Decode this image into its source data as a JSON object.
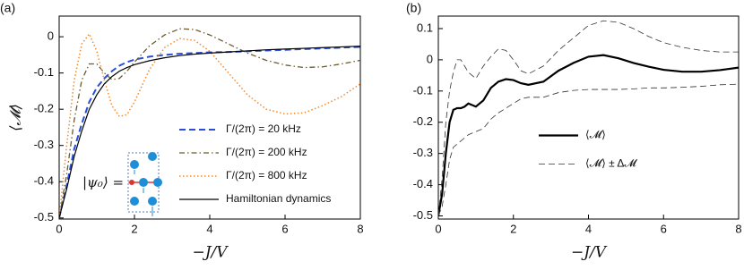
{
  "chart_data": [
    {
      "type": "line",
      "panel_label": "(a)",
      "xlabel": "−J/V",
      "ylabel": "⟨𝓜⟩",
      "annotation": "|ψ₀⟩ =",
      "xlim": [
        0,
        8
      ],
      "ylim": [
        -0.503,
        0.057
      ],
      "xticks": [
        0,
        2,
        4,
        6,
        8
      ],
      "yticks": [
        -0.5,
        -0.4,
        -0.3,
        -0.2,
        -0.1,
        0
      ],
      "legend": "lower right",
      "x": [
        0,
        0.2,
        0.4,
        0.6,
        0.8,
        1.0,
        1.2,
        1.4,
        1.6,
        1.8,
        2.0,
        2.4,
        2.8,
        3.2,
        3.6,
        4.0,
        4.5,
        5,
        5.5,
        6,
        6.5,
        7,
        7.5,
        8
      ],
      "series": [
        {
          "name": "Γ/(2π) = 20 kHz",
          "color": "#2a4fd6",
          "linestyle": "dashed",
          "width": 2,
          "values": [
            -0.5,
            -0.41,
            -0.31,
            -0.24,
            -0.18,
            -0.14,
            -0.115,
            -0.095,
            -0.08,
            -0.07,
            -0.063,
            -0.055,
            -0.05,
            -0.047,
            -0.045,
            -0.043,
            -0.042,
            -0.04,
            -0.038,
            -0.036,
            -0.034,
            -0.032,
            -0.03,
            -0.028
          ]
        },
        {
          "name": "Γ/(2π) = 200 kHz",
          "color": "#6b5a2e",
          "linestyle": "dashdot",
          "width": 1.3,
          "values": [
            -0.5,
            -0.38,
            -0.23,
            -0.12,
            -0.075,
            -0.075,
            -0.1,
            -0.118,
            -0.115,
            -0.095,
            -0.07,
            -0.025,
            0.005,
            0.022,
            0.02,
            0.005,
            -0.02,
            -0.045,
            -0.065,
            -0.078,
            -0.085,
            -0.083,
            -0.075,
            -0.065
          ]
        },
        {
          "name": "Γ/(2π) = 800 kHz",
          "color": "#f08a2c",
          "linestyle": "dotted",
          "width": 1.5,
          "values": [
            -0.5,
            -0.3,
            -0.12,
            -0.02,
            0.008,
            -0.04,
            -0.12,
            -0.19,
            -0.22,
            -0.215,
            -0.18,
            -0.09,
            -0.03,
            -0.005,
            -0.01,
            -0.04,
            -0.1,
            -0.16,
            -0.2,
            -0.213,
            -0.21,
            -0.19,
            -0.165,
            -0.13
          ]
        },
        {
          "name": "Hamiltonian dynamics",
          "color": "#000000",
          "linestyle": "solid",
          "width": 1.2,
          "values": [
            -0.5,
            -0.42,
            -0.33,
            -0.26,
            -0.2,
            -0.16,
            -0.13,
            -0.11,
            -0.095,
            -0.085,
            -0.077,
            -0.066,
            -0.058,
            -0.052,
            -0.048,
            -0.045,
            -0.042,
            -0.039,
            -0.036,
            -0.034,
            -0.032,
            -0.03,
            -0.028,
            -0.026
          ]
        }
      ]
    },
    {
      "type": "line",
      "panel_label": "(b)",
      "xlabel": "−J/V",
      "xlim": [
        0,
        8
      ],
      "ylim": [
        -0.51,
        0.14
      ],
      "xticks": [
        0,
        2,
        4,
        6,
        8
      ],
      "yticks": [
        -0.5,
        -0.4,
        -0.3,
        -0.2,
        -0.1,
        0,
        0.1
      ],
      "legend": "center right",
      "x": [
        0,
        0.1,
        0.2,
        0.3,
        0.4,
        0.5,
        0.6,
        0.7,
        0.8,
        1.0,
        1.2,
        1.4,
        1.6,
        1.8,
        2.0,
        2.2,
        2.4,
        2.8,
        3.2,
        3.6,
        4.0,
        4.4,
        4.8,
        5.2,
        5.6,
        6,
        6.5,
        7,
        7.5,
        8
      ],
      "series": [
        {
          "name": "⟨𝓜⟩",
          "color": "#000000",
          "linestyle": "solid",
          "width": 2.2,
          "values": [
            -0.5,
            -0.43,
            -0.3,
            -0.2,
            -0.16,
            -0.155,
            -0.155,
            -0.15,
            -0.14,
            -0.15,
            -0.13,
            -0.09,
            -0.07,
            -0.062,
            -0.065,
            -0.075,
            -0.08,
            -0.07,
            -0.035,
            -0.01,
            0.01,
            0.015,
            0.005,
            -0.01,
            -0.022,
            -0.032,
            -0.038,
            -0.038,
            -0.033,
            -0.025
          ]
        },
        {
          "name": "⟨𝓜⟩ ± Δ𝓜",
          "color": "#333333",
          "linestyle": "dashed",
          "width": 0.8,
          "values": [
            -0.5,
            -0.38,
            -0.2,
            -0.1,
            -0.04,
            0.0,
            0.0,
            -0.02,
            -0.04,
            -0.06,
            -0.02,
            0.01,
            0.035,
            0.03,
            0.0,
            -0.035,
            -0.045,
            -0.02,
            0.03,
            0.07,
            0.11,
            0.125,
            0.12,
            0.1,
            0.075,
            0.055,
            0.04,
            0.03,
            0.025,
            0.025
          ]
        },
        {
          "color": "#333333",
          "linestyle": "dashed",
          "width": 0.8,
          "values": [
            -0.5,
            -0.47,
            -0.4,
            -0.32,
            -0.28,
            -0.27,
            -0.26,
            -0.25,
            -0.24,
            -0.23,
            -0.22,
            -0.19,
            -0.17,
            -0.155,
            -0.14,
            -0.125,
            -0.12,
            -0.12,
            -0.105,
            -0.098,
            -0.095,
            -0.095,
            -0.095,
            -0.093,
            -0.09,
            -0.09,
            -0.088,
            -0.085,
            -0.08,
            -0.078
          ]
        }
      ]
    }
  ]
}
